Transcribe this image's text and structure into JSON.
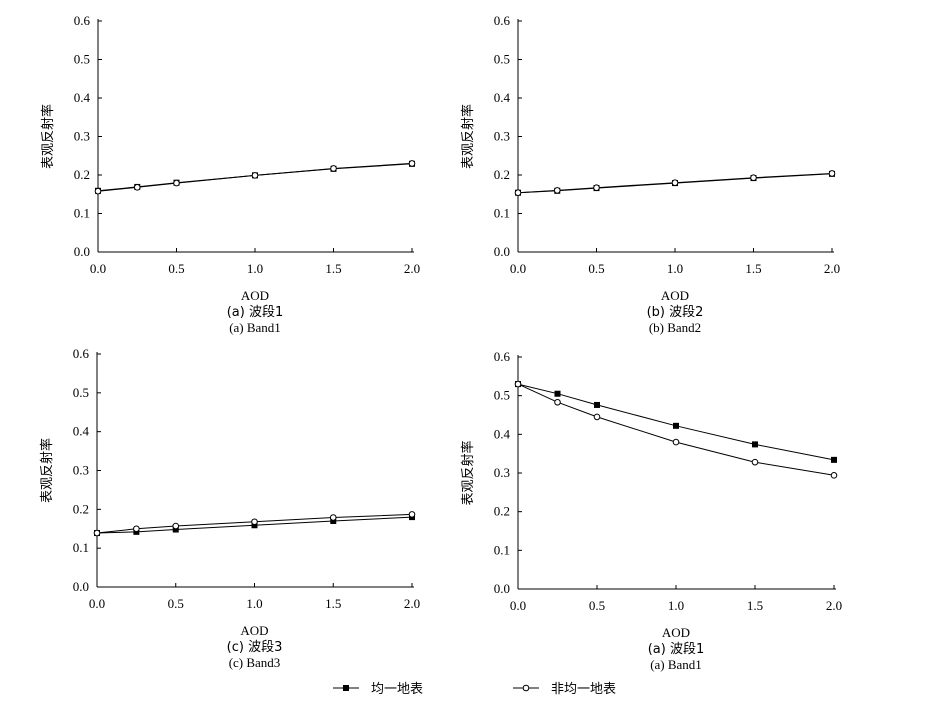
{
  "chart_data": [
    {
      "type": "line",
      "xlabel": "AOD",
      "ylabel": "表观反射率",
      "caption_cn": "(a) 波段1",
      "caption_en": "(a) Band1",
      "xlim": [
        0,
        2.0
      ],
      "ylim": [
        0,
        0.6
      ],
      "xticks": [
        "0.0",
        "0.5",
        "1.0",
        "1.5",
        "2.0"
      ],
      "yticks": [
        "0.0",
        "0.1",
        "0.2",
        "0.3",
        "0.4",
        "0.5",
        "0.6"
      ],
      "series": [
        {
          "marker": "square",
          "x": [
            0,
            0.25,
            0.5,
            1.0,
            1.5,
            2.0
          ],
          "y": [
            0.159,
            0.169,
            0.18,
            0.199,
            0.216,
            0.229
          ]
        },
        {
          "marker": "circle",
          "x": [
            0,
            0.25,
            0.5,
            1.0,
            1.5,
            2.0
          ],
          "y": [
            0.158,
            0.168,
            0.179,
            0.199,
            0.217,
            0.23
          ]
        }
      ]
    },
    {
      "type": "line",
      "xlabel": "AOD",
      "ylabel": "表观反射率",
      "caption_cn": "(b) 波段2",
      "caption_en": "(b) Band2",
      "xlim": [
        0,
        2.0
      ],
      "ylim": [
        0,
        0.6
      ],
      "xticks": [
        "0.0",
        "0.5",
        "1.0",
        "1.5",
        "2.0"
      ],
      "yticks": [
        "0.0",
        "0.1",
        "0.2",
        "0.3",
        "0.4",
        "0.5",
        "0.6"
      ],
      "series": [
        {
          "marker": "square",
          "x": [
            0,
            0.25,
            0.5,
            1.0,
            1.5,
            2.0
          ],
          "y": [
            0.154,
            0.159,
            0.166,
            0.179,
            0.192,
            0.203
          ]
        },
        {
          "marker": "circle",
          "x": [
            0,
            0.25,
            0.5,
            1.0,
            1.5,
            2.0
          ],
          "y": [
            0.154,
            0.16,
            0.167,
            0.18,
            0.193,
            0.204
          ]
        }
      ]
    },
    {
      "type": "line",
      "xlabel": "AOD",
      "ylabel": "表观反射率",
      "caption_cn": "(c) 波段3",
      "caption_en": "(c) Band3",
      "xlim": [
        0,
        2.0
      ],
      "ylim": [
        0,
        0.6
      ],
      "xticks": [
        "0.0",
        "0.5",
        "1.0",
        "1.5",
        "2.0"
      ],
      "yticks": [
        "0.0",
        "0.1",
        "0.2",
        "0.3",
        "0.4",
        "0.5",
        "0.6"
      ],
      "series": [
        {
          "marker": "square",
          "x": [
            0,
            0.25,
            0.5,
            1.0,
            1.5,
            2.0
          ],
          "y": [
            0.139,
            0.142,
            0.148,
            0.159,
            0.17,
            0.18
          ]
        },
        {
          "marker": "circle",
          "x": [
            0,
            0.25,
            0.5,
            1.0,
            1.5,
            2.0
          ],
          "y": [
            0.139,
            0.15,
            0.157,
            0.168,
            0.179,
            0.187
          ]
        }
      ]
    },
    {
      "type": "line",
      "xlabel": "AOD",
      "ylabel": "表观反射率",
      "caption_cn": "(a) 波段1",
      "caption_en": "(a) Band1",
      "xlim": [
        0,
        2.0
      ],
      "ylim": [
        0,
        0.6
      ],
      "xticks": [
        "0.0",
        "0.5",
        "1.0",
        "1.5",
        "2.0"
      ],
      "yticks": [
        "0.0",
        "0.1",
        "0.2",
        "0.3",
        "0.4",
        "0.5",
        "0.6"
      ],
      "series": [
        {
          "marker": "square",
          "x": [
            0,
            0.25,
            0.5,
            1.0,
            1.5,
            2.0
          ],
          "y": [
            0.53,
            0.505,
            0.476,
            0.422,
            0.374,
            0.334
          ]
        },
        {
          "marker": "circle",
          "x": [
            0,
            0.25,
            0.5,
            1.0,
            1.5,
            2.0
          ],
          "y": [
            0.53,
            0.483,
            0.445,
            0.38,
            0.328,
            0.294
          ]
        }
      ]
    }
  ],
  "legend": [
    {
      "marker": "square",
      "symbol": "─■─",
      "label": "均一地表"
    },
    {
      "marker": "circle",
      "symbol": "─○─",
      "label": "非均一地表"
    }
  ]
}
